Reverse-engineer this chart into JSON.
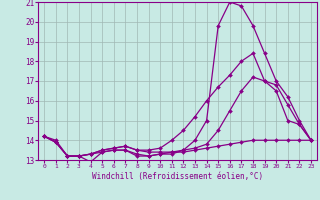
{
  "xlabel": "Windchill (Refroidissement éolien,°C)",
  "xlim": [
    -0.5,
    23.5
  ],
  "ylim": [
    13,
    21
  ],
  "yticks": [
    13,
    14,
    15,
    16,
    17,
    18,
    19,
    20,
    21
  ],
  "xticks": [
    0,
    1,
    2,
    3,
    4,
    5,
    6,
    7,
    8,
    9,
    10,
    11,
    12,
    13,
    14,
    15,
    16,
    17,
    18,
    19,
    20,
    21,
    22,
    23
  ],
  "bg_color": "#c8eae4",
  "grid_color": "#a0b8b4",
  "line_color": "#880088",
  "series": [
    {
      "x": [
        0,
        1,
        2,
        3,
        4,
        5,
        6,
        7,
        8,
        9,
        10,
        11,
        12,
        13,
        14,
        15,
        16,
        17,
        18,
        19,
        20,
        21,
        22,
        23
      ],
      "y": [
        14.2,
        14.0,
        13.2,
        13.2,
        12.9,
        13.4,
        13.5,
        13.5,
        13.2,
        13.2,
        13.3,
        13.3,
        13.5,
        14.0,
        15.0,
        19.8,
        21.0,
        20.8,
        19.8,
        18.4,
        17.0,
        16.2,
        15.0,
        14.0
      ]
    },
    {
      "x": [
        0,
        1,
        2,
        3,
        4,
        5,
        6,
        7,
        8,
        9,
        10,
        11,
        12,
        13,
        14,
        15,
        16,
        17,
        18,
        19,
        20,
        21,
        22,
        23
      ],
      "y": [
        14.2,
        13.9,
        13.2,
        13.2,
        13.3,
        13.5,
        13.6,
        13.7,
        13.5,
        13.5,
        13.6,
        14.0,
        14.5,
        15.2,
        16.0,
        16.7,
        17.3,
        18.0,
        18.4,
        17.0,
        16.5,
        15.0,
        14.8,
        14.0
      ]
    },
    {
      "x": [
        0,
        1,
        2,
        3,
        4,
        5,
        6,
        7,
        8,
        9,
        10,
        11,
        12,
        13,
        14,
        15,
        16,
        17,
        18,
        19,
        20,
        21,
        22,
        23
      ],
      "y": [
        14.2,
        13.9,
        13.2,
        13.2,
        13.3,
        13.5,
        13.6,
        13.7,
        13.5,
        13.4,
        13.4,
        13.4,
        13.4,
        13.5,
        13.6,
        13.7,
        13.8,
        13.9,
        14.0,
        14.0,
        14.0,
        14.0,
        14.0,
        14.0
      ]
    },
    {
      "x": [
        0,
        1,
        2,
        3,
        4,
        5,
        6,
        7,
        8,
        9,
        10,
        11,
        12,
        13,
        14,
        15,
        16,
        17,
        18,
        19,
        20,
        21,
        22,
        23
      ],
      "y": [
        14.2,
        13.9,
        13.2,
        13.2,
        13.3,
        13.4,
        13.5,
        13.5,
        13.3,
        13.2,
        13.3,
        13.4,
        13.5,
        13.6,
        13.8,
        14.5,
        15.5,
        16.5,
        17.2,
        17.0,
        16.8,
        15.8,
        14.8,
        14.0
      ]
    }
  ]
}
